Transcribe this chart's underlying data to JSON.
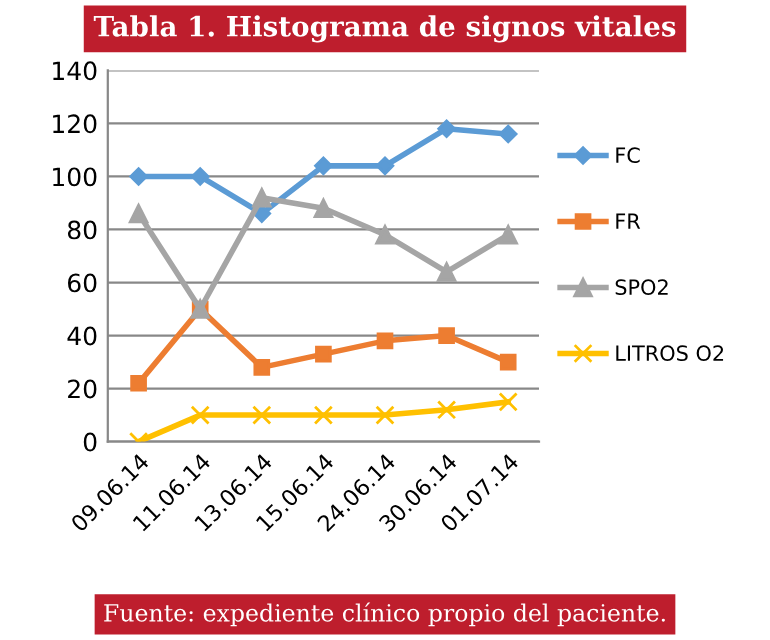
{
  "chart_data": {
    "type": "line",
    "title": "Tabla 1. Histograma de signos vitales",
    "categories": [
      "09.06.14",
      "11.06.14",
      "13.06.14",
      "15.06.14",
      "24.06.14",
      "30.06.14",
      "01.07.14"
    ],
    "series": [
      {
        "name": "FC",
        "color": "#5b9bd5",
        "marker": "diamond",
        "values": [
          100,
          100,
          86,
          104,
          104,
          118,
          116
        ]
      },
      {
        "name": "FR",
        "color": "#ed7d31",
        "marker": "square",
        "values": [
          22,
          50,
          28,
          33,
          38,
          40,
          30
        ]
      },
      {
        "name": "SPO2",
        "color": "#a5a5a5",
        "marker": "triangle",
        "values": [
          86,
          50,
          92,
          88,
          78,
          64,
          78
        ]
      },
      {
        "name": "LITROS O2",
        "color": "#ffc000",
        "marker": "cross",
        "values": [
          0,
          10,
          10,
          10,
          10,
          12,
          15
        ]
      }
    ],
    "ylim": [
      0,
      140
    ],
    "yticks": [
      0,
      20,
      40,
      60,
      80,
      100,
      120,
      140
    ],
    "grid": "y",
    "legend": "right",
    "annotations": [
      "Fuente: expediente clínico propio del paciente."
    ]
  }
}
